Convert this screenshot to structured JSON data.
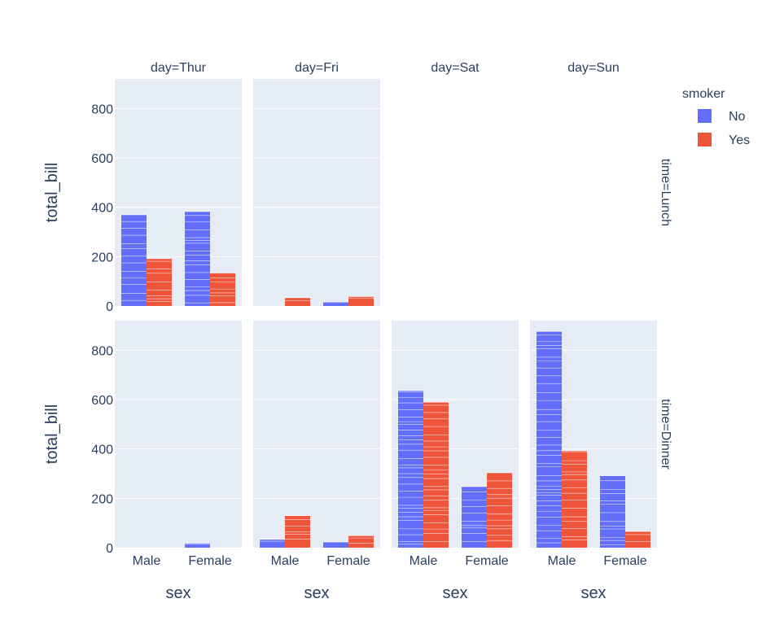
{
  "chart_data": {
    "type": "bar",
    "layout": "faceted-grid",
    "bar_style": "stacked-segments-per-row",
    "x_title": "sex",
    "y_title": "total_bill",
    "categories": [
      "Male",
      "Female"
    ],
    "y_ticks": [
      0,
      200,
      400,
      600,
      800
    ],
    "ylim": [
      0,
      920
    ],
    "columns": [
      {
        "key": "Thur",
        "label": "day=Thur"
      },
      {
        "key": "Fri",
        "label": "day=Fri"
      },
      {
        "key": "Sat",
        "label": "day=Sat"
      },
      {
        "key": "Sun",
        "label": "day=Sun"
      }
    ],
    "rows": [
      {
        "key": "Lunch",
        "label": "time=Lunch"
      },
      {
        "key": "Dinner",
        "label": "time=Dinner"
      }
    ],
    "legend": {
      "title": "smoker",
      "items": [
        {
          "name": "No",
          "color": "#636efa"
        },
        {
          "name": "Yes",
          "color": "#EF553B"
        }
      ]
    },
    "series_colors": {
      "No": "#636efa",
      "Yes": "#EF553B"
    },
    "panels": [
      {
        "row": "Lunch",
        "col": "Thur",
        "values": {
          "Male": {
            "No": 370,
            "Yes": 192
          },
          "Female": {
            "No": 383,
            "Yes": 134
          }
        }
      },
      {
        "row": "Lunch",
        "col": "Fri",
        "values": {
          "Male": {
            "No": 0,
            "Yes": 34
          },
          "Female": {
            "No": 16,
            "Yes": 39
          }
        }
      },
      {
        "row": "Lunch",
        "col": "Sat",
        "empty": true
      },
      {
        "row": "Lunch",
        "col": "Sun",
        "empty": true
      },
      {
        "row": "Dinner",
        "col": "Thur",
        "values": {
          "Male": {
            "No": 0,
            "Yes": 0
          },
          "Female": {
            "No": 18.8,
            "Yes": 0
          }
        }
      },
      {
        "row": "Dinner",
        "col": "Fri",
        "values": {
          "Male": {
            "No": 34,
            "Yes": 130
          },
          "Female": {
            "No": 23,
            "Yes": 49
          }
        }
      },
      {
        "row": "Dinner",
        "col": "Sat",
        "values": {
          "Male": {
            "No": 637,
            "Yes": 590
          },
          "Female": {
            "No": 248,
            "Yes": 304
          }
        }
      },
      {
        "row": "Dinner",
        "col": "Sun",
        "values": {
          "Male": {
            "No": 877,
            "Yes": 393
          },
          "Female": {
            "No": 292,
            "Yes": 66
          }
        }
      }
    ]
  }
}
